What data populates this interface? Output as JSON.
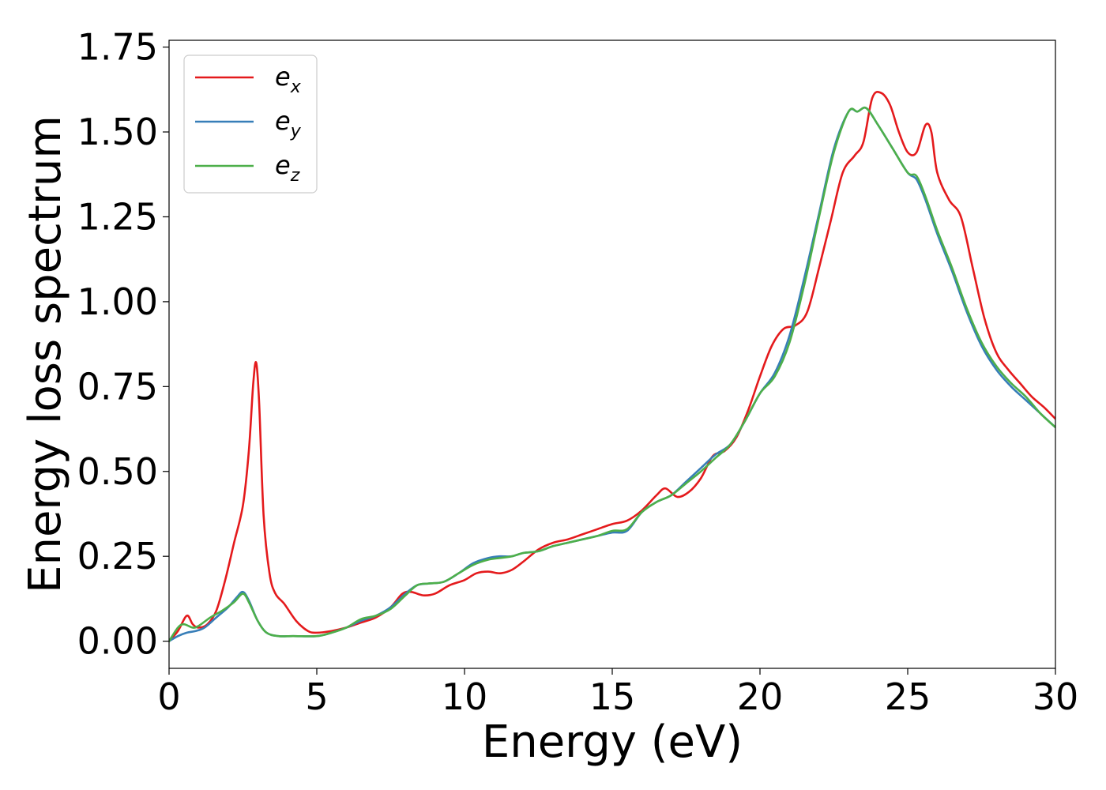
{
  "chart_data": {
    "type": "line",
    "xlabel": "Energy (eV)",
    "ylabel": "Energy loss spectrum",
    "xlim": [
      0,
      30
    ],
    "ylim": [
      -0.08,
      1.77
    ],
    "x_ticks": [
      0,
      5,
      10,
      15,
      20,
      25,
      30
    ],
    "x_tick_labels": [
      "0",
      "5",
      "10",
      "15",
      "20",
      "25",
      "30"
    ],
    "y_ticks": [
      0.0,
      0.25,
      0.5,
      0.75,
      1.0,
      1.25,
      1.5,
      1.75
    ],
    "y_tick_labels": [
      "0.00",
      "0.25",
      "0.50",
      "0.75",
      "1.00",
      "1.25",
      "1.50",
      "1.75"
    ],
    "grid": false,
    "legend_position": "top-left",
    "series": [
      {
        "name": "e_x",
        "legend_main": "e",
        "legend_sub": "x",
        "color": "#e41a1c",
        "points": [
          [
            0,
            0.0
          ],
          [
            0.3,
            0.03
          ],
          [
            0.6,
            0.075
          ],
          [
            0.8,
            0.05
          ],
          [
            1.0,
            0.04
          ],
          [
            1.3,
            0.05
          ],
          [
            1.6,
            0.09
          ],
          [
            1.9,
            0.18
          ],
          [
            2.2,
            0.29
          ],
          [
            2.5,
            0.4
          ],
          [
            2.7,
            0.56
          ],
          [
            2.85,
            0.76
          ],
          [
            2.95,
            0.82
          ],
          [
            3.05,
            0.7
          ],
          [
            3.2,
            0.37
          ],
          [
            3.4,
            0.2
          ],
          [
            3.6,
            0.14
          ],
          [
            3.9,
            0.11
          ],
          [
            4.3,
            0.06
          ],
          [
            4.7,
            0.03
          ],
          [
            5.0,
            0.025
          ],
          [
            5.5,
            0.03
          ],
          [
            6.0,
            0.04
          ],
          [
            6.5,
            0.055
          ],
          [
            7.0,
            0.07
          ],
          [
            7.5,
            0.1
          ],
          [
            7.9,
            0.14
          ],
          [
            8.2,
            0.145
          ],
          [
            8.6,
            0.135
          ],
          [
            9.0,
            0.14
          ],
          [
            9.5,
            0.165
          ],
          [
            10.0,
            0.18
          ],
          [
            10.4,
            0.2
          ],
          [
            10.8,
            0.205
          ],
          [
            11.2,
            0.2
          ],
          [
            11.6,
            0.21
          ],
          [
            12.0,
            0.235
          ],
          [
            12.5,
            0.27
          ],
          [
            13.0,
            0.29
          ],
          [
            13.5,
            0.3
          ],
          [
            14.0,
            0.315
          ],
          [
            14.5,
            0.33
          ],
          [
            15.0,
            0.345
          ],
          [
            15.5,
            0.355
          ],
          [
            16.0,
            0.385
          ],
          [
            16.5,
            0.43
          ],
          [
            16.8,
            0.45
          ],
          [
            17.2,
            0.425
          ],
          [
            17.6,
            0.44
          ],
          [
            18.0,
            0.48
          ],
          [
            18.4,
            0.545
          ],
          [
            18.8,
            0.56
          ],
          [
            19.2,
            0.6
          ],
          [
            19.6,
            0.68
          ],
          [
            20.0,
            0.78
          ],
          [
            20.4,
            0.87
          ],
          [
            20.8,
            0.92
          ],
          [
            21.2,
            0.93
          ],
          [
            21.6,
            0.97
          ],
          [
            22.0,
            1.1
          ],
          [
            22.4,
            1.24
          ],
          [
            22.8,
            1.38
          ],
          [
            23.2,
            1.43
          ],
          [
            23.5,
            1.47
          ],
          [
            23.8,
            1.6
          ],
          [
            24.1,
            1.615
          ],
          [
            24.4,
            1.58
          ],
          [
            24.7,
            1.5
          ],
          [
            25.0,
            1.44
          ],
          [
            25.3,
            1.44
          ],
          [
            25.6,
            1.52
          ],
          [
            25.8,
            1.5
          ],
          [
            26.0,
            1.38
          ],
          [
            26.4,
            1.3
          ],
          [
            26.8,
            1.25
          ],
          [
            27.2,
            1.1
          ],
          [
            27.6,
            0.95
          ],
          [
            28.0,
            0.85
          ],
          [
            28.4,
            0.8
          ],
          [
            28.8,
            0.76
          ],
          [
            29.2,
            0.72
          ],
          [
            29.6,
            0.69
          ],
          [
            30.0,
            0.655
          ]
        ]
      },
      {
        "name": "e_y",
        "legend_main": "e",
        "legend_sub": "y",
        "color": "#377eb8",
        "points": [
          [
            0,
            0.0
          ],
          [
            0.3,
            0.015
          ],
          [
            0.6,
            0.025
          ],
          [
            0.9,
            0.03
          ],
          [
            1.2,
            0.04
          ],
          [
            1.6,
            0.07
          ],
          [
            2.0,
            0.1
          ],
          [
            2.3,
            0.13
          ],
          [
            2.5,
            0.145
          ],
          [
            2.7,
            0.12
          ],
          [
            3.0,
            0.06
          ],
          [
            3.3,
            0.025
          ],
          [
            3.7,
            0.015
          ],
          [
            4.2,
            0.015
          ],
          [
            5.0,
            0.015
          ],
          [
            5.5,
            0.025
          ],
          [
            6.0,
            0.04
          ],
          [
            6.5,
            0.06
          ],
          [
            7.0,
            0.075
          ],
          [
            7.5,
            0.1
          ],
          [
            8.0,
            0.14
          ],
          [
            8.4,
            0.165
          ],
          [
            8.8,
            0.17
          ],
          [
            9.3,
            0.175
          ],
          [
            9.8,
            0.2
          ],
          [
            10.3,
            0.23
          ],
          [
            10.8,
            0.245
          ],
          [
            11.2,
            0.25
          ],
          [
            11.6,
            0.25
          ],
          [
            12.0,
            0.26
          ],
          [
            12.5,
            0.265
          ],
          [
            13.0,
            0.28
          ],
          [
            13.5,
            0.29
          ],
          [
            14.0,
            0.3
          ],
          [
            14.5,
            0.31
          ],
          [
            15.0,
            0.32
          ],
          [
            15.5,
            0.325
          ],
          [
            16.0,
            0.38
          ],
          [
            16.5,
            0.41
          ],
          [
            17.0,
            0.43
          ],
          [
            17.5,
            0.47
          ],
          [
            18.0,
            0.51
          ],
          [
            18.5,
            0.55
          ],
          [
            19.0,
            0.58
          ],
          [
            19.5,
            0.65
          ],
          [
            20.0,
            0.73
          ],
          [
            20.5,
            0.79
          ],
          [
            21.0,
            0.9
          ],
          [
            21.5,
            1.07
          ],
          [
            22.0,
            1.26
          ],
          [
            22.5,
            1.45
          ],
          [
            23.0,
            1.56
          ],
          [
            23.3,
            1.56
          ],
          [
            23.6,
            1.57
          ],
          [
            24.0,
            1.52
          ],
          [
            24.5,
            1.45
          ],
          [
            25.0,
            1.38
          ],
          [
            25.3,
            1.36
          ],
          [
            25.6,
            1.3
          ],
          [
            26.0,
            1.2
          ],
          [
            26.5,
            1.09
          ],
          [
            27.0,
            0.97
          ],
          [
            27.5,
            0.87
          ],
          [
            28.0,
            0.8
          ],
          [
            28.5,
            0.75
          ],
          [
            29.0,
            0.71
          ],
          [
            29.5,
            0.67
          ],
          [
            30.0,
            0.63
          ]
        ]
      },
      {
        "name": "e_z",
        "legend_main": "e",
        "legend_sub": "z",
        "color": "#4daf4a",
        "points": [
          [
            0,
            0.0
          ],
          [
            0.3,
            0.04
          ],
          [
            0.5,
            0.05
          ],
          [
            0.8,
            0.04
          ],
          [
            1.0,
            0.045
          ],
          [
            1.4,
            0.07
          ],
          [
            1.8,
            0.09
          ],
          [
            2.2,
            0.115
          ],
          [
            2.5,
            0.14
          ],
          [
            2.7,
            0.115
          ],
          [
            3.0,
            0.06
          ],
          [
            3.3,
            0.025
          ],
          [
            3.7,
            0.015
          ],
          [
            4.2,
            0.015
          ],
          [
            5.0,
            0.015
          ],
          [
            5.5,
            0.025
          ],
          [
            6.0,
            0.04
          ],
          [
            6.5,
            0.065
          ],
          [
            7.0,
            0.075
          ],
          [
            7.5,
            0.095
          ],
          [
            8.0,
            0.135
          ],
          [
            8.4,
            0.165
          ],
          [
            8.8,
            0.17
          ],
          [
            9.3,
            0.175
          ],
          [
            9.8,
            0.2
          ],
          [
            10.3,
            0.225
          ],
          [
            10.8,
            0.24
          ],
          [
            11.2,
            0.245
          ],
          [
            11.6,
            0.25
          ],
          [
            12.0,
            0.26
          ],
          [
            12.5,
            0.265
          ],
          [
            13.0,
            0.28
          ],
          [
            13.5,
            0.29
          ],
          [
            14.0,
            0.3
          ],
          [
            14.5,
            0.31
          ],
          [
            15.0,
            0.325
          ],
          [
            15.5,
            0.33
          ],
          [
            16.0,
            0.38
          ],
          [
            16.5,
            0.41
          ],
          [
            17.0,
            0.43
          ],
          [
            17.5,
            0.465
          ],
          [
            18.0,
            0.5
          ],
          [
            18.5,
            0.54
          ],
          [
            19.0,
            0.58
          ],
          [
            19.5,
            0.65
          ],
          [
            20.0,
            0.73
          ],
          [
            20.5,
            0.78
          ],
          [
            21.0,
            0.88
          ],
          [
            21.5,
            1.05
          ],
          [
            22.0,
            1.25
          ],
          [
            22.5,
            1.44
          ],
          [
            23.0,
            1.56
          ],
          [
            23.3,
            1.56
          ],
          [
            23.6,
            1.57
          ],
          [
            24.0,
            1.52
          ],
          [
            24.5,
            1.45
          ],
          [
            25.0,
            1.38
          ],
          [
            25.3,
            1.37
          ],
          [
            25.6,
            1.31
          ],
          [
            26.0,
            1.21
          ],
          [
            26.5,
            1.1
          ],
          [
            27.0,
            0.98
          ],
          [
            27.5,
            0.88
          ],
          [
            28.0,
            0.81
          ],
          [
            28.5,
            0.76
          ],
          [
            29.0,
            0.72
          ],
          [
            29.5,
            0.67
          ],
          [
            30.0,
            0.63
          ]
        ]
      }
    ]
  }
}
